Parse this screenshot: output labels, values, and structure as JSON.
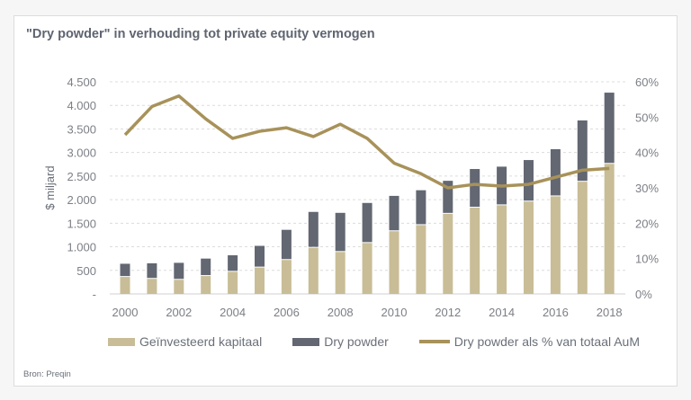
{
  "title": "\"Dry powder\" in verhouding tot private equity vermogen",
  "source": "Bron: Preqin",
  "chart_data": {
    "type": "bar",
    "stacked": true,
    "title": "\"Dry powder\" in verhouding tot private equity vermogen",
    "categories": [
      "2000",
      "2001",
      "2002",
      "2003",
      "2004",
      "2005",
      "2006",
      "2007",
      "2008",
      "2009",
      "2010",
      "2011",
      "2012",
      "2013",
      "2014",
      "2015",
      "2016",
      "2017",
      "2018"
    ],
    "x_tick_labels": [
      "2000",
      "2002",
      "2004",
      "2006",
      "2008",
      "2010",
      "2012",
      "2014",
      "2016",
      "2018"
    ],
    "ylabel": "$ miljard",
    "ylim": [
      0,
      4500
    ],
    "y_tick_labels": [
      "-",
      "500",
      "1.000",
      "1.500",
      "2.000",
      "2.500",
      "3.000",
      "3.500",
      "4.000",
      "4.500"
    ],
    "y2lim": [
      0,
      60
    ],
    "y2_tick_labels": [
      "0%",
      "10%",
      "20%",
      "30%",
      "40%",
      "50%",
      "60%"
    ],
    "grid": true,
    "legend_position": "bottom",
    "series": [
      {
        "name": "Geïnvesteerd kapitaal",
        "type": "bar",
        "axis": "left",
        "color": "#c8bd96",
        "values": [
          360,
          320,
          300,
          380,
          470,
          560,
          720,
          980,
          890,
          1080,
          1330,
          1460,
          1700,
          1830,
          1880,
          1960,
          2070,
          2380,
          2760
        ]
      },
      {
        "name": "Dry powder",
        "type": "bar",
        "axis": "left",
        "color": "#626772",
        "values": [
          280,
          330,
          360,
          370,
          350,
          460,
          640,
          760,
          830,
          850,
          750,
          740,
          700,
          820,
          820,
          880,
          1000,
          1300,
          1510
        ]
      },
      {
        "name": "Dry powder als % van totaal AuM",
        "type": "line",
        "axis": "right",
        "color": "#a8925a",
        "values": [
          45,
          53,
          56,
          49.5,
          44,
          46,
          47,
          44.5,
          48,
          44,
          37,
          34,
          30,
          31,
          30.5,
          31,
          33,
          35,
          35.5
        ]
      }
    ]
  }
}
